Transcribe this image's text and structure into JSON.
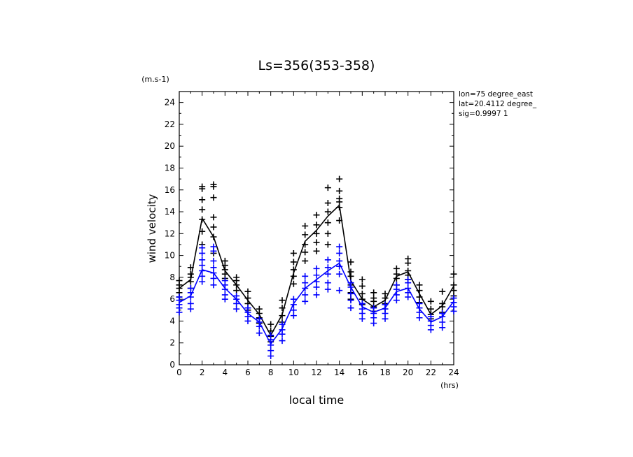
{
  "chart_data": {
    "type": "line",
    "title": "Ls=356(353-358)",
    "xlabel": "local time",
    "ylabel": "wind velocity",
    "x_unit": "(hrs)",
    "y_unit": "(m.s-1)",
    "xlim": [
      0,
      24
    ],
    "ylim": [
      0,
      25
    ],
    "xticks": [
      0,
      2,
      4,
      6,
      8,
      10,
      12,
      14,
      16,
      18,
      20,
      22,
      24
    ],
    "yticks": [
      0,
      2,
      4,
      6,
      8,
      10,
      12,
      14,
      16,
      18,
      20,
      22,
      24
    ],
    "grid": false,
    "annotations": [
      "lon=75 degree_east",
      "lat=20.4112 degree_",
      "sig=0.9997 1"
    ],
    "x": [
      0,
      1,
      2,
      3,
      4,
      5,
      6,
      7,
      8,
      9,
      10,
      11,
      12,
      13,
      14,
      15,
      16,
      17,
      18,
      19,
      20,
      21,
      22,
      23,
      24
    ],
    "series": [
      {
        "color": "#000000",
        "values": [
          7.0,
          7.8,
          13.4,
          11.7,
          8.6,
          7.3,
          5.9,
          4.6,
          2.7,
          4.6,
          8.4,
          11.3,
          12.3,
          13.6,
          14.6,
          7.7,
          6.0,
          5.3,
          5.9,
          8.1,
          8.5,
          6.5,
          4.6,
          5.4,
          7.2
        ],
        "scatter": [
          [
            6.2,
            6.6,
            7.0,
            7.3,
            7.7
          ],
          [
            7.0,
            7.6,
            8.0,
            8.3,
            8.9
          ],
          [
            11.0,
            12.2,
            13.3,
            14.2,
            15.1,
            16.1,
            16.3
          ],
          [
            10.2,
            11.7,
            12.6,
            13.5,
            15.3,
            16.3,
            16.5
          ],
          [
            7.9,
            8.3,
            8.7,
            9.1,
            9.5
          ],
          [
            6.8,
            7.3,
            7.7,
            8.0
          ],
          [
            5.0,
            5.6,
            6.1,
            6.7
          ],
          [
            3.8,
            4.3,
            4.7,
            5.1
          ],
          [
            2.1,
            2.6,
            3.1,
            3.7
          ],
          [
            3.9,
            4.5,
            5.2,
            5.9
          ],
          [
            7.4,
            8.1,
            8.7,
            9.4,
            10.2
          ],
          [
            9.5,
            10.3,
            11.0,
            11.9,
            12.7
          ],
          [
            10.4,
            11.2,
            12.0,
            12.8,
            13.7
          ],
          [
            11.0,
            12.0,
            13.0,
            14.0,
            14.8,
            16.2
          ],
          [
            13.2,
            14.4,
            14.9,
            15.2,
            15.9,
            17.0
          ],
          [
            6.0,
            6.6,
            7.3,
            8.1,
            8.5,
            9.4
          ],
          [
            5.5,
            6.0,
            6.5,
            7.2,
            7.8
          ],
          [
            4.9,
            5.3,
            5.8,
            6.1,
            6.6
          ],
          [
            5.1,
            5.6,
            6.1,
            6.5
          ],
          [
            7.3,
            7.9,
            8.3,
            8.8
          ],
          [
            7.8,
            8.2,
            8.6,
            9.3,
            9.7
          ],
          [
            5.7,
            6.2,
            6.8,
            7.3
          ],
          [
            4.2,
            4.6,
            5.1,
            5.8
          ],
          [
            4.8,
            5.3,
            5.6,
            6.7
          ],
          [
            6.3,
            6.8,
            7.3,
            8.3
          ]
        ]
      },
      {
        "color": "#0000ff",
        "values": [
          5.7,
          6.3,
          8.7,
          8.4,
          7.0,
          6.0,
          4.7,
          3.9,
          1.9,
          3.3,
          5.6,
          7.0,
          7.8,
          8.6,
          9.3,
          7.1,
          5.3,
          4.8,
          5.2,
          6.7,
          7.0,
          5.1,
          3.9,
          4.4,
          5.8
        ],
        "scatter": [
          [
            4.8,
            5.2,
            5.5,
            5.9,
            6.2
          ],
          [
            5.1,
            5.6,
            6.2,
            6.6,
            7.0
          ],
          [
            7.6,
            8.1,
            8.6,
            9.1,
            9.6,
            10.2,
            10.7
          ],
          [
            7.3,
            7.9,
            8.4,
            8.9,
            9.5,
            10.4,
            10.8
          ],
          [
            6.0,
            6.4,
            6.9,
            7.3,
            7.7
          ],
          [
            5.1,
            5.6,
            6.0,
            6.3
          ],
          [
            4.0,
            4.4,
            4.8,
            5.2
          ],
          [
            2.9,
            3.5,
            3.9,
            4.2
          ],
          [
            0.8,
            1.3,
            1.8,
            2.3,
            2.7
          ],
          [
            2.2,
            2.8,
            3.2,
            3.7
          ],
          [
            4.5,
            5.0,
            5.5,
            6.0
          ],
          [
            5.8,
            6.4,
            7.0,
            7.5,
            8.1
          ],
          [
            6.4,
            7.1,
            7.6,
            8.2,
            8.8
          ],
          [
            6.9,
            7.5,
            8.3,
            8.9,
            9.6
          ],
          [
            6.8,
            8.3,
            9.0,
            9.5,
            10.2,
            10.8
          ],
          [
            5.2,
            5.9,
            6.5,
            7.1,
            7.5
          ],
          [
            4.2,
            4.7,
            5.1,
            5.6
          ],
          [
            3.8,
            4.3,
            4.7,
            5.2
          ],
          [
            4.2,
            4.7,
            5.1,
            5.5
          ],
          [
            5.9,
            6.4,
            6.9,
            7.3
          ],
          [
            6.2,
            6.6,
            7.0,
            7.5,
            7.8
          ],
          [
            4.3,
            4.8,
            5.2,
            5.6
          ],
          [
            3.2,
            3.6,
            4.0,
            4.4
          ],
          [
            3.4,
            3.9,
            4.4,
            4.7
          ],
          [
            4.9,
            5.3,
            5.7,
            6.1
          ]
        ]
      }
    ]
  }
}
